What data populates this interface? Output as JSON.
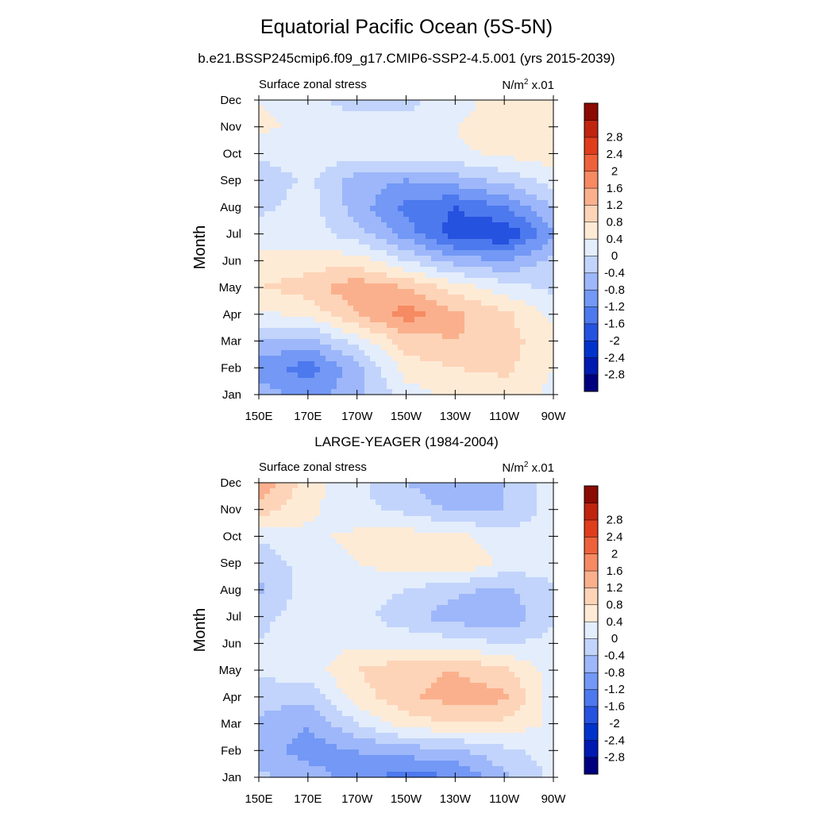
{
  "figure": {
    "title": "Equatorial Pacific Ocean (5S-5N)",
    "panels": [
      {
        "title": "b.e21.BSSP245cmip6.f09_g17.CMIP6-SSP2-4.5.001 (yrs 2015-2039)",
        "left_label": "Surface zonal stress",
        "units_base": "N/m",
        "units_sup": "2",
        "units_scale": " x.01"
      },
      {
        "title": "LARGE-YEAGER (1984-2004)",
        "left_label": "Surface zonal stress",
        "units_base": "N/m",
        "units_sup": "2",
        "units_scale": " x.01"
      }
    ]
  },
  "chart_data": [
    {
      "type": "heatmap",
      "title": "b.e21.BSSP245cmip6.f09_g17.CMIP6-SSP2-4.5.001 (yrs 2015-2039)",
      "variable": "Surface zonal stress",
      "units": "N/m2 x.01",
      "xlabel": "",
      "ylabel": "Month",
      "x": [
        150,
        170,
        190,
        210,
        230,
        250,
        270
      ],
      "x_tick_labels": [
        "150E",
        "170E",
        "170W",
        "150W",
        "130W",
        "110W",
        "90W"
      ],
      "y": [
        "Jan",
        "Feb",
        "Mar",
        "Apr",
        "May",
        "Jun",
        "Jul",
        "Aug",
        "Sep",
        "Oct",
        "Nov",
        "Dec"
      ],
      "values": [
        [
          -0.6,
          -1.0,
          -0.5,
          0.2,
          0.5,
          0.6,
          0.3
        ],
        [
          -1.0,
          -1.4,
          -0.6,
          0.6,
          0.8,
          0.9,
          0.4
        ],
        [
          -0.4,
          -0.6,
          0.2,
          1.0,
          1.2,
          1.0,
          0.5
        ],
        [
          0.3,
          0.5,
          1.2,
          1.8,
          1.3,
          0.9,
          0.3
        ],
        [
          0.8,
          1.0,
          1.5,
          1.2,
          0.6,
          0.2,
          -0.1
        ],
        [
          0.5,
          0.6,
          0.6,
          0.0,
          -0.6,
          -0.8,
          -0.3
        ],
        [
          0.2,
          0.2,
          -0.2,
          -1.0,
          -1.8,
          -2.0,
          -0.9
        ],
        [
          -0.1,
          0.2,
          -0.6,
          -1.3,
          -1.6,
          -1.2,
          -0.4
        ],
        [
          -0.3,
          0.1,
          -0.6,
          -0.8,
          -0.6,
          -0.3,
          0.2
        ],
        [
          0.1,
          0.2,
          0.2,
          0.2,
          0.3,
          0.5,
          0.6
        ],
        [
          0.5,
          0.3,
          0.2,
          0.1,
          0.4,
          0.7,
          0.7
        ],
        [
          0.4,
          0.1,
          -0.2,
          -0.1,
          0.2,
          0.6,
          0.6
        ]
      ],
      "colorbar": {
        "levels": [
          -2.8,
          -2.4,
          -2,
          -1.6,
          -1.2,
          -0.8,
          -0.4,
          0,
          0.4,
          0.8,
          1.2,
          1.6,
          2,
          2.4,
          2.8
        ],
        "colors": [
          "#00007f",
          "#001ab2",
          "#0033cc",
          "#2652e0",
          "#4d79ee",
          "#7398f5",
          "#9db7fa",
          "#c2d4fb",
          "#e3edfc",
          "#feebd6",
          "#fdd4b8",
          "#fbb08d",
          "#f68a62",
          "#ee623b",
          "#e03d1c",
          "#c0240f",
          "#8c0a04"
        ]
      }
    },
    {
      "type": "heatmap",
      "title": "LARGE-YEAGER (1984-2004)",
      "variable": "Surface zonal stress",
      "units": "N/m2 x.01",
      "xlabel": "",
      "ylabel": "Month",
      "x": [
        150,
        170,
        190,
        210,
        230,
        250,
        270
      ],
      "x_tick_labels": [
        "150E",
        "170E",
        "170W",
        "150W",
        "130W",
        "110W",
        "90W"
      ],
      "y": [
        "Jan",
        "Feb",
        "Mar",
        "Apr",
        "May",
        "Jun",
        "Jul",
        "Aug",
        "Sep",
        "Oct",
        "Nov",
        "Dec"
      ],
      "values": [
        [
          -0.3,
          -0.6,
          -1.0,
          -1.4,
          -1.2,
          -0.5,
          0.1
        ],
        [
          -0.6,
          -1.0,
          -0.8,
          -0.6,
          -0.5,
          -0.1,
          0.2
        ],
        [
          -0.5,
          -0.8,
          0.0,
          0.6,
          0.8,
          0.7,
          0.3
        ],
        [
          -0.2,
          -0.3,
          0.6,
          1.1,
          1.4,
          1.3,
          0.2
        ],
        [
          0.1,
          0.2,
          0.8,
          1.1,
          1.2,
          0.9,
          0.2
        ],
        [
          0.0,
          0.2,
          0.3,
          0.3,
          0.2,
          0.0,
          0.1
        ],
        [
          -0.1,
          0.2,
          0.2,
          -0.3,
          -0.6,
          -0.8,
          0.0
        ],
        [
          -0.5,
          0.2,
          0.2,
          0.0,
          -0.3,
          -0.5,
          0.0
        ],
        [
          -0.3,
          0.2,
          0.4,
          0.6,
          0.8,
          0.3,
          0.1
        ],
        [
          0.1,
          0.3,
          0.5,
          0.6,
          0.5,
          0.2,
          0.1
        ],
        [
          1.0,
          0.5,
          0.1,
          -0.1,
          -0.5,
          -0.4,
          0.2
        ],
        [
          1.6,
          0.6,
          0.1,
          -0.4,
          -0.8,
          -0.4,
          0.2
        ]
      ],
      "colorbar": {
        "levels": [
          -2.8,
          -2.4,
          -2,
          -1.6,
          -1.2,
          -0.8,
          -0.4,
          0,
          0.4,
          0.8,
          1.2,
          1.6,
          2,
          2.4,
          2.8
        ],
        "colors": [
          "#00007f",
          "#001ab2",
          "#0033cc",
          "#2652e0",
          "#4d79ee",
          "#7398f5",
          "#9db7fa",
          "#c2d4fb",
          "#e3edfc",
          "#feebd6",
          "#fdd4b8",
          "#fbb08d",
          "#f68a62",
          "#ee623b",
          "#e03d1c",
          "#c0240f",
          "#8c0a04"
        ]
      }
    }
  ]
}
